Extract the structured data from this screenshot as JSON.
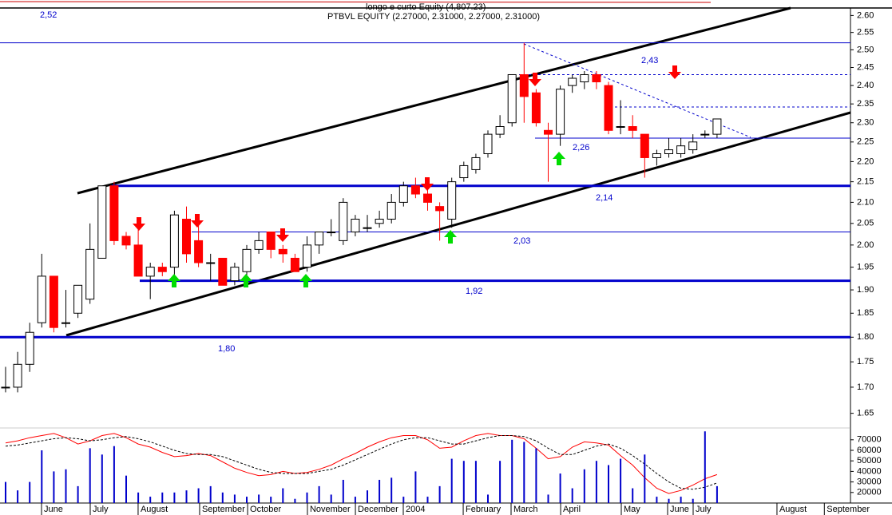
{
  "chart_data": {
    "type": "candlestick",
    "header": [
      "longo e curto Equity (4,807.23)",
      "PTBVL EQUITY (2.27000, 2.31000, 2.27000, 2.31000)"
    ],
    "open": [
      1.7,
      1.7,
      1.745,
      1.83,
      1.93,
      1.83,
      1.85,
      1.88,
      1.97,
      2.14,
      2.02,
      2.0,
      1.93,
      1.95,
      1.95,
      2.06,
      2.01,
      1.96,
      1.97,
      1.92,
      1.94,
      1.99,
      2.03,
      1.99,
      1.97,
      1.95,
      2.0,
      2.03,
      2.01,
      2.03,
      2.04,
      2.05,
      2.06,
      2.1,
      2.14,
      2.12,
      2.09,
      2.06,
      2.16,
      2.18,
      2.22,
      2.27,
      2.3,
      2.43,
      2.38,
      2.28,
      2.27,
      2.4,
      2.41,
      2.43,
      2.4,
      2.29,
      2.29,
      2.27,
      2.21,
      2.22,
      2.22,
      2.23,
      2.27,
      2.27
    ],
    "high": [
      1.74,
      1.77,
      1.83,
      1.98,
      1.93,
      1.9,
      1.91,
      2.05,
      2.14,
      2.15,
      2.03,
      2.04,
      1.96,
      1.96,
      2.08,
      2.09,
      2.06,
      1.98,
      1.97,
      1.96,
      2.0,
      2.03,
      2.03,
      2.0,
      1.98,
      2.02,
      2.03,
      2.06,
      2.11,
      2.07,
      2.07,
      2.08,
      2.12,
      2.15,
      2.16,
      2.14,
      2.1,
      2.16,
      2.2,
      2.22,
      2.28,
      2.32,
      2.43,
      2.52,
      2.39,
      2.3,
      2.4,
      2.43,
      2.44,
      2.44,
      2.41,
      2.36,
      2.32,
      2.27,
      2.23,
      2.26,
      2.26,
      2.27,
      2.28,
      2.31
    ],
    "low": [
      1.69,
      1.69,
      1.73,
      1.82,
      1.81,
      1.82,
      1.84,
      1.87,
      1.97,
      2.0,
      1.99,
      1.93,
      1.88,
      1.93,
      1.93,
      1.96,
      1.95,
      1.92,
      1.91,
      1.91,
      1.93,
      1.98,
      1.97,
      1.96,
      1.94,
      1.94,
      1.98,
      2.02,
      2.0,
      2.02,
      2.03,
      2.04,
      2.05,
      2.09,
      2.11,
      2.08,
      2.01,
      2.04,
      2.15,
      2.17,
      2.21,
      2.26,
      2.29,
      2.3,
      2.29,
      2.15,
      2.24,
      2.38,
      2.39,
      2.39,
      2.27,
      2.27,
      2.26,
      2.16,
      2.19,
      2.21,
      2.21,
      2.22,
      2.26,
      2.26
    ],
    "close": [
      1.7,
      1.745,
      1.81,
      1.93,
      1.82,
      1.83,
      1.91,
      1.99,
      2.14,
      2.01,
      2.0,
      1.93,
      1.95,
      1.94,
      2.07,
      1.98,
      1.96,
      1.96,
      1.91,
      1.95,
      1.99,
      2.01,
      1.99,
      1.98,
      1.94,
      2.0,
      2.03,
      2.03,
      2.1,
      2.06,
      2.04,
      2.06,
      2.1,
      2.14,
      2.12,
      2.1,
      2.08,
      2.15,
      2.19,
      2.21,
      2.27,
      2.29,
      2.43,
      2.37,
      2.3,
      2.27,
      2.39,
      2.42,
      2.43,
      2.41,
      2.28,
      2.29,
      2.28,
      2.21,
      2.22,
      2.23,
      2.24,
      2.25,
      2.27,
      2.31
    ],
    "up_color": "#ffffff",
    "down_color": "#ff0000",
    "xlim": [
      -0.4636,
      70.066
    ],
    "xticks": [
      {
        "value": 2.98,
        "label": "June"
      },
      {
        "value": 7.02,
        "label": "July"
      },
      {
        "value": 10.99,
        "label": "August"
      },
      {
        "value": 16.09,
        "label": "September"
      },
      {
        "value": 20.07,
        "label": "October"
      },
      {
        "value": 25.03,
        "label": "November"
      },
      {
        "value": 29.01,
        "label": "December"
      },
      {
        "value": 32.98,
        "label": "2004"
      },
      {
        "value": 37.95,
        "label": "February"
      },
      {
        "value": 41.92,
        "label": "March"
      },
      {
        "value": 46.03,
        "label": "April"
      },
      {
        "value": 51.06,
        "label": "May"
      },
      {
        "value": 54.9,
        "label": "June"
      },
      {
        "value": 57.02,
        "label": "July"
      },
      {
        "value": 63.97,
        "label": "August"
      },
      {
        "value": 67.9,
        "label": "September"
      }
    ],
    "ylim": [
      1.63,
      2.62
    ],
    "log_scale": true,
    "yticks": [
      {
        "value": 2.6,
        "label": "2.60"
      },
      {
        "value": 2.55,
        "label": "2.55"
      },
      {
        "value": 2.5,
        "label": "2.50"
      },
      {
        "value": 2.45,
        "label": "2.45"
      },
      {
        "value": 2.4,
        "label": "2.40"
      },
      {
        "value": 2.35,
        "label": "2.35"
      },
      {
        "value": 2.3,
        "label": "2.30"
      },
      {
        "value": 2.25,
        "label": "2.25"
      },
      {
        "value": 2.2,
        "label": "2.20"
      },
      {
        "value": 2.15,
        "label": "2.15"
      },
      {
        "value": 2.1,
        "label": "2.10"
      },
      {
        "value": 2.05,
        "label": "2.05"
      },
      {
        "value": 2.0,
        "label": "2.00"
      },
      {
        "value": 1.95,
        "label": "1.95"
      },
      {
        "value": 1.9,
        "label": "1.90"
      },
      {
        "value": 1.85,
        "label": "1.85"
      },
      {
        "value": 1.8,
        "label": "1.80"
      },
      {
        "value": 1.75,
        "label": "1.75"
      },
      {
        "value": 1.7,
        "label": "1.70"
      },
      {
        "value": 1.65,
        "label": "1.65"
      }
    ],
    "levels": [
      {
        "value": 2.52,
        "label": "2,52"
      },
      {
        "value": 2.43,
        "label": "2,43"
      },
      {
        "value": 2.26,
        "label": "2,26"
      },
      {
        "value": 2.14,
        "label": "2,14"
      },
      {
        "value": 2.03,
        "label": "2,03"
      },
      {
        "value": 1.92,
        "label": "1,92"
      },
      {
        "value": 1.8,
        "label": "1,80"
      }
    ],
    "level_color": "#0000cc",
    "volume": [
      30000,
      22000,
      30000,
      60000,
      40000,
      42000,
      26000,
      62000,
      56000,
      64000,
      36000,
      20000,
      16000,
      20000,
      20000,
      22000,
      24000,
      26000,
      20000,
      18000,
      16000,
      18000,
      16000,
      24000,
      14000,
      20000,
      26000,
      18000,
      32000,
      16000,
      22000,
      32000,
      34000,
      16000,
      40000,
      16000,
      26000,
      52000,
      50000,
      50000,
      18000,
      50000,
      70000,
      68000,
      62000,
      18000,
      38000,
      24000,
      42000,
      50000,
      46000,
      52000,
      24000,
      56000,
      16000,
      14000,
      16000,
      14000,
      78000,
      26000
    ],
    "volume_color": "#0000cc",
    "volume_ylim": [
      10000,
      80000
    ],
    "volume_yticks": [
      20000,
      30000,
      40000,
      50000,
      60000,
      70000
    ],
    "oscillator": [
      {
        "color": "#ff0000",
        "dashed": false,
        "values": [
          67000,
          69000,
          72000,
          74000,
          76000,
          72000,
          66000,
          69000,
          74000,
          76000,
          72000,
          66000,
          63000,
          58000,
          54000,
          55000,
          57000,
          55000,
          49000,
          43000,
          39000,
          36000,
          37000,
          40000,
          38000,
          39000,
          42000,
          46000,
          52000,
          57000,
          63000,
          68000,
          72000,
          74000,
          74000,
          70000,
          62000,
          63000,
          69000,
          74000,
          76000,
          74000,
          74000,
          71000,
          62000,
          52000,
          54000,
          63000,
          68000,
          67000,
          65000,
          55000,
          46000,
          34000,
          24000,
          19000,
          22000,
          27000,
          33000,
          37000
        ]
      },
      {
        "color": "#000000",
        "dashed": true,
        "values": [
          64000,
          65000,
          67000,
          69000,
          71000,
          72000,
          71000,
          69000,
          70000,
          72000,
          73000,
          71000,
          68000,
          64000,
          60000,
          57000,
          56000,
          56000,
          54000,
          50000,
          46000,
          42000,
          39000,
          38000,
          38000,
          38000,
          40000,
          42000,
          46000,
          51000,
          56000,
          61000,
          66000,
          70000,
          72000,
          72000,
          69000,
          66000,
          66000,
          69000,
          72000,
          74000,
          74000,
          73000,
          69000,
          62000,
          56000,
          56000,
          60000,
          64000,
          66000,
          62000,
          55000,
          47000,
          38000,
          30000,
          24000,
          23000,
          25000,
          29000
        ]
      }
    ]
  }
}
